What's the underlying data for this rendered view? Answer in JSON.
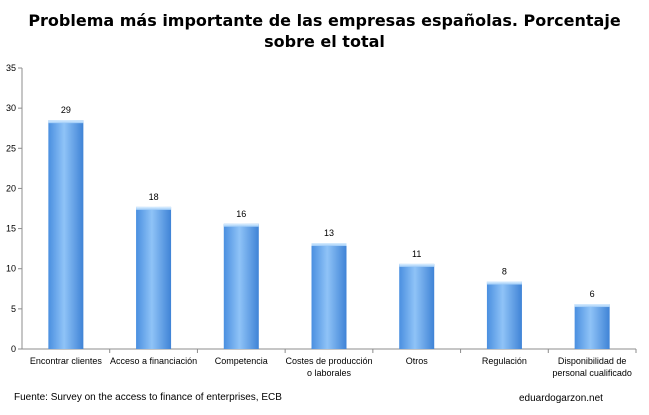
{
  "chart_data": {
    "type": "bar",
    "title_lines": [
      "Problema más importante de las empresas españolas. Porcentaje",
      "sobre el total"
    ],
    "categories": [
      [
        "Encontrar clientes"
      ],
      [
        "Acceso a financiación"
      ],
      [
        "Competencia"
      ],
      [
        "Costes de producción",
        "o laborales"
      ],
      [
        "Otros"
      ],
      [
        "Regulación"
      ],
      [
        "Disponibilidad de",
        "personal cualificado"
      ]
    ],
    "values": [
      28.5,
      17.7,
      15.6,
      13.2,
      10.6,
      8.4,
      5.6
    ],
    "data_labels": [
      "29",
      "18",
      "16",
      "13",
      "11",
      "8",
      "6"
    ],
    "yticks": [
      0,
      5,
      10,
      15,
      20,
      25,
      30,
      35
    ],
    "ylim": [
      0,
      35
    ],
    "grid": false,
    "legend": "none",
    "bar_color": "#6aa9ee"
  },
  "footer": {
    "source": "Fuente: Survey on the access to finance of enterprises, ECB",
    "credit": "eduardogarzon.net"
  }
}
